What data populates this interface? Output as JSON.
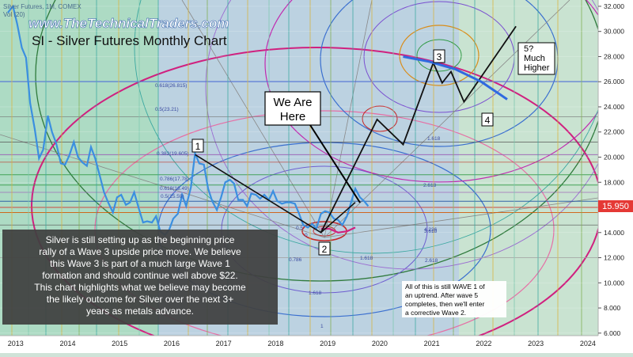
{
  "header": {
    "instrument": "Silver Futures, 1M, COMEX",
    "vol": "Vol (20)",
    "website": "www.TheTechnicalTraders.com",
    "chart_title": "SI - Silver Futures Monthly Chart"
  },
  "annotations": {
    "we_are_here": [
      "We Are",
      "Here"
    ],
    "wave_labels": [
      "1",
      "2",
      "3",
      "4"
    ],
    "wave5": [
      "5?",
      "Much",
      "Higher"
    ],
    "commentary": [
      "Silver is still setting up as the beginning price",
      "rally of a Wave 3 upside price move.  We believe",
      "this Wave 3 is part of a much large Wave 1",
      "formation and should continue well above $22.",
      "This chart highlights what we believe may become",
      "the likely outcome for Silver over the next 3+",
      "years as metals advance."
    ],
    "note": [
      "All of this is still WAVE 1 of",
      "an uptrend.  After wave 5",
      "completes, then we'll enter",
      "a corrective Wave 2."
    ]
  },
  "fib_labels": [
    "0.618(26.815)",
    "0.5(23.21)",
    "0.382(19.605)",
    "0.786(17.78)",
    "0.618(16.49)",
    "0.5(15.59)",
    "1.618",
    "2.618",
    "3.618",
    "1.618",
    "2.618",
    "4.236",
    "0.786",
    "1.618",
    "1",
    "0",
    "0.5"
  ],
  "chart_data": {
    "type": "line",
    "price_label": "15.950",
    "x_ticks": [
      "2013",
      "2014",
      "2015",
      "2016",
      "2017",
      "2018",
      "2019",
      "2020",
      "2021",
      "2022",
      "2023",
      "2024"
    ],
    "y_ticks": [
      6,
      8,
      10,
      12,
      14,
      16,
      18,
      20,
      22,
      24,
      26,
      28,
      30,
      32
    ],
    "y_tick_labels": [
      "6.000",
      "8.000",
      "10.000",
      "12.000",
      "14.000",
      "16.000",
      "18.000",
      "20.000",
      "22.000",
      "24.000",
      "26.000",
      "28.000",
      "30.000",
      "32.000"
    ],
    "ylim": [
      5.8,
      32.5
    ],
    "xlim": [
      2012.75,
      2024.25
    ],
    "current_price": 15.95,
    "series": [
      {
        "values": [
          [
            2012.9,
            31.5
          ],
          [
            2013.0,
            32.0
          ],
          [
            2013.08,
            30.6
          ],
          [
            2013.17,
            28.7
          ],
          [
            2013.25,
            27.9
          ],
          [
            2013.33,
            24.3
          ],
          [
            2013.42,
            22.2
          ],
          [
            2013.5,
            19.9
          ],
          [
            2013.58,
            20.6
          ],
          [
            2013.67,
            23.3
          ],
          [
            2013.75,
            22.0
          ],
          [
            2013.83,
            21.1
          ],
          [
            2013.92,
            19.5
          ],
          [
            2014.0,
            19.4
          ],
          [
            2014.08,
            20.1
          ],
          [
            2014.17,
            21.2
          ],
          [
            2014.25,
            20.0
          ],
          [
            2014.33,
            19.6
          ],
          [
            2014.42,
            19.3
          ],
          [
            2014.5,
            20.8
          ],
          [
            2014.58,
            19.9
          ],
          [
            2014.67,
            18.5
          ],
          [
            2014.75,
            17.2
          ],
          [
            2014.83,
            16.4
          ],
          [
            2014.92,
            15.6
          ],
          [
            2015.0,
            16.8
          ],
          [
            2015.08,
            17.0
          ],
          [
            2015.17,
            16.2
          ],
          [
            2015.25,
            16.4
          ],
          [
            2015.33,
            17.2
          ],
          [
            2015.42,
            15.9
          ],
          [
            2015.5,
            14.8
          ],
          [
            2015.58,
            14.9
          ],
          [
            2015.67,
            14.8
          ],
          [
            2015.75,
            15.3
          ],
          [
            2015.83,
            14.1
          ],
          [
            2015.92,
            13.8
          ],
          [
            2016.0,
            14.2
          ],
          [
            2016.08,
            15.1
          ],
          [
            2016.17,
            15.5
          ],
          [
            2016.25,
            17.0
          ],
          [
            2016.33,
            16.1
          ],
          [
            2016.42,
            17.6
          ],
          [
            2016.5,
            20.3
          ],
          [
            2016.58,
            19.5
          ],
          [
            2016.67,
            19.4
          ],
          [
            2016.75,
            17.5
          ],
          [
            2016.83,
            16.5
          ],
          [
            2016.92,
            15.8
          ],
          [
            2017.0,
            16.8
          ],
          [
            2017.08,
            18.0
          ],
          [
            2017.17,
            18.2
          ],
          [
            2017.25,
            17.9
          ],
          [
            2017.33,
            16.6
          ],
          [
            2017.42,
            16.6
          ],
          [
            2017.5,
            16.1
          ],
          [
            2017.58,
            17.1
          ],
          [
            2017.67,
            17.0
          ],
          [
            2017.75,
            16.7
          ],
          [
            2017.83,
            17.0
          ],
          [
            2017.92,
            16.6
          ],
          [
            2018.0,
            17.3
          ],
          [
            2018.08,
            16.5
          ],
          [
            2018.17,
            16.3
          ],
          [
            2018.25,
            16.4
          ],
          [
            2018.33,
            16.4
          ],
          [
            2018.42,
            16.3
          ],
          [
            2018.5,
            15.5
          ],
          [
            2018.58,
            14.6
          ],
          [
            2018.67,
            14.4
          ],
          [
            2018.75,
            14.7
          ],
          [
            2018.83,
            14.3
          ],
          [
            2018.92,
            15.5
          ],
          [
            2019.0,
            15.7
          ],
          [
            2019.08,
            15.6
          ],
          [
            2019.17,
            15.1
          ],
          [
            2019.25,
            15.0
          ],
          [
            2019.33,
            14.6
          ],
          [
            2019.42,
            15.3
          ],
          [
            2019.5,
            16.4
          ],
          [
            2019.58,
            17.5
          ],
          [
            2019.67,
            16.8
          ],
          [
            2019.75,
            16.5
          ],
          [
            2019.83,
            16.1
          ]
        ]
      },
      {
        "values": [
          [
            2018.92,
            14.3
          ],
          [
            2019.08,
            14.3
          ],
          [
            2019.25,
            14.0
          ],
          [
            2019.42,
            14.1
          ],
          [
            2019.58,
            14.4
          ]
        ]
      },
      {
        "values": [
          [
            2016.5,
            20.2
          ],
          [
            2018.92,
            14.0
          ],
          [
            2019.58,
            16.4
          ]
        ]
      },
      {
        "values": [
          [
            2018.92,
            14.0
          ],
          [
            2020.0,
            23.0
          ],
          [
            2020.5,
            21.0
          ],
          [
            2021.08,
            27.5
          ],
          [
            2021.25,
            25.9
          ],
          [
            2021.42,
            26.8
          ],
          [
            2021.67,
            24.4
          ],
          [
            2022.67,
            30.4
          ]
        ]
      },
      {
        "values": [
          [
            2020.5,
            28.0
          ],
          [
            2021.0,
            27.6
          ],
          [
            2021.5,
            27.0
          ],
          [
            2022.0,
            26.0
          ],
          [
            2022.5,
            24.6
          ]
        ]
      }
    ]
  }
}
